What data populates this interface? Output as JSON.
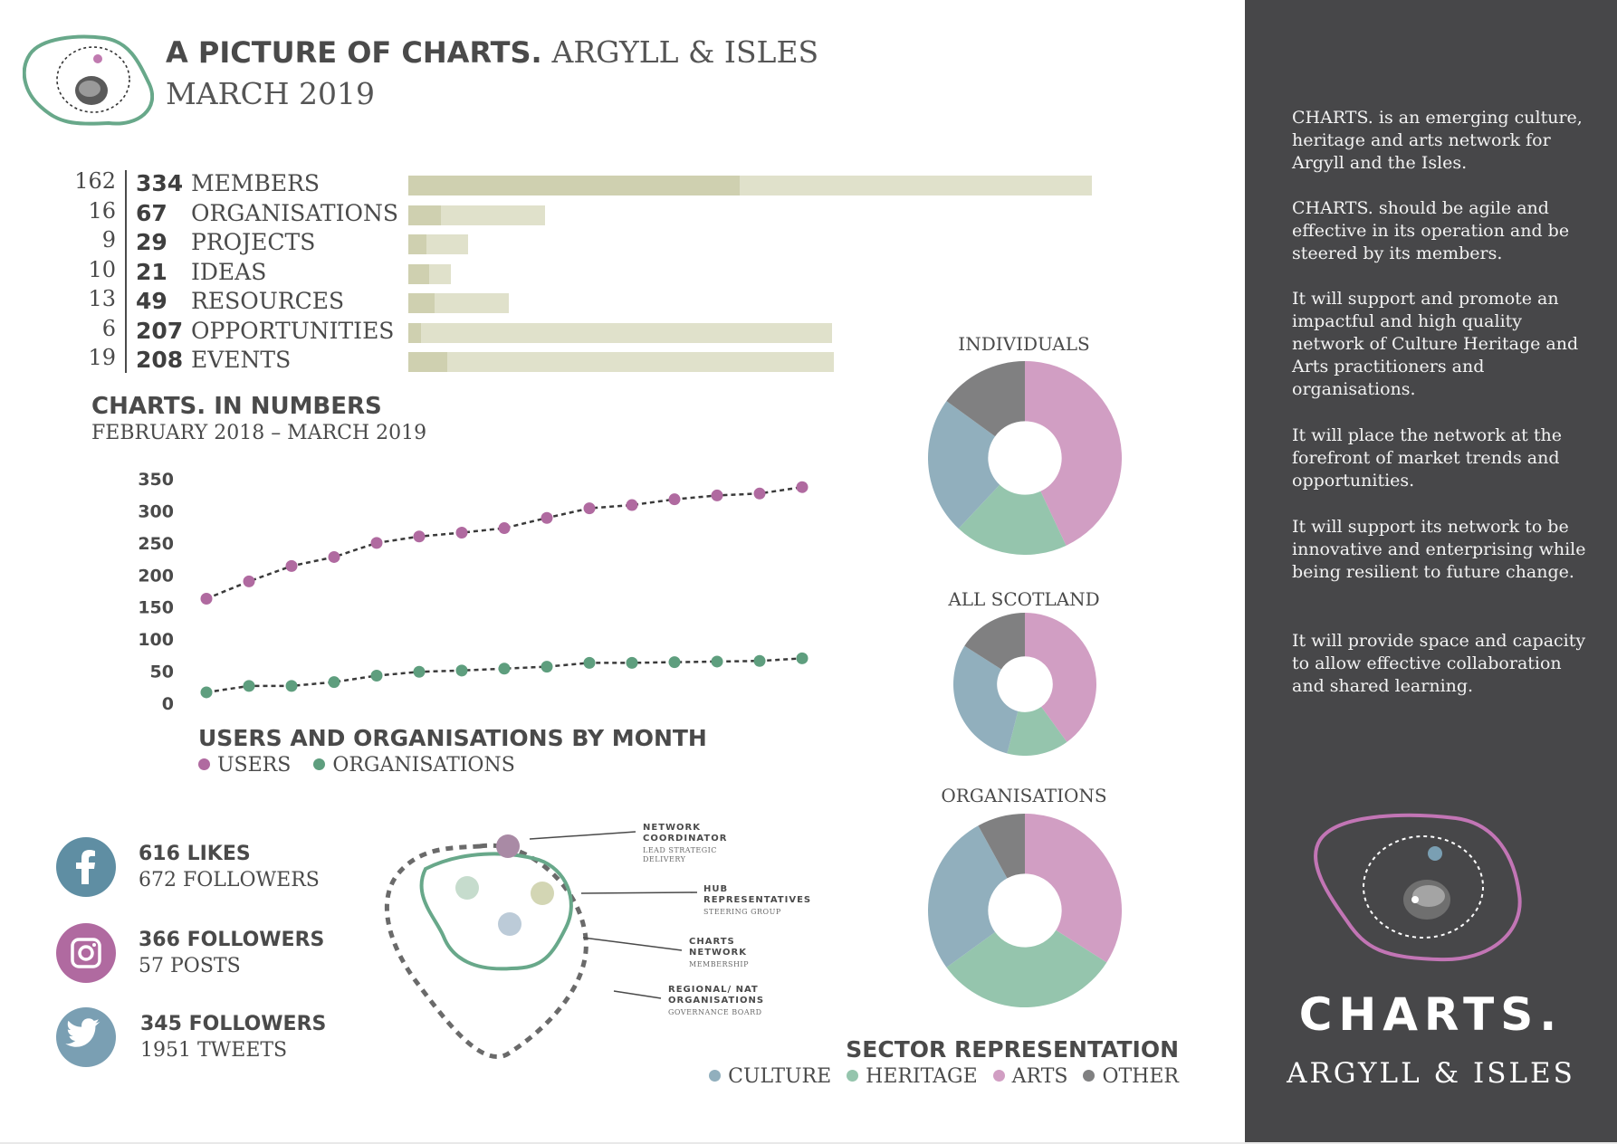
{
  "header": {
    "title_bold": "A PICTURE OF CHARTS.",
    "title_light": "ARGYLL & ISLES",
    "subtitle": "MARCH 2019"
  },
  "stats": [
    {
      "new": 162,
      "total": 334,
      "label": "MEMBERS"
    },
    {
      "new": 16,
      "total": 67,
      "label": "ORGANISATIONS"
    },
    {
      "new": 9,
      "total": 29,
      "label": "PROJECTS"
    },
    {
      "new": 10,
      "total": 21,
      "label": "IDEAS"
    },
    {
      "new": 13,
      "total": 49,
      "label": "RESOURCES"
    },
    {
      "new": 6,
      "total": 207,
      "label": "OPPORTUNITIES"
    },
    {
      "new": 19,
      "total": 208,
      "label": "EVENTS"
    }
  ],
  "numbers": {
    "title": "CHARTS. IN NUMBERS",
    "subtitle": "FEBRUARY 2018 – MARCH 2019"
  },
  "line_chart": {
    "title": "USERS AND ORGANISATIONS BY MONTH",
    "legend": [
      "USERS",
      "ORGANISATIONS"
    ]
  },
  "social": {
    "facebook": {
      "main": "616 LIKES",
      "sub": "672 FOLLOWERS",
      "icon": "facebook-icon"
    },
    "instagram": {
      "main": "366 FOLLOWERS",
      "sub": "57 POSTS",
      "icon": "instagram-icon"
    },
    "twitter": {
      "main": "345 FOLLOWERS",
      "sub": "1951 TWEETS",
      "icon": "twitter-icon"
    }
  },
  "diagram": {
    "labels": [
      {
        "title": [
          "NETWORK",
          "COORDINATOR"
        ],
        "sub": [
          "LEAD STRATEGIC",
          "DELIVERY"
        ]
      },
      {
        "title": [
          "HUB",
          "REPRESENTATIVES"
        ],
        "sub": [
          "STEERING GROUP"
        ]
      },
      {
        "title": [
          "CHARTS",
          "NETWORK"
        ],
        "sub": [
          "MEMBERSHIP"
        ]
      },
      {
        "title": [
          "REGIONAL/ NAT",
          "ORGANISATIONS"
        ],
        "sub": [
          "GOVERNANCE BOARD"
        ]
      }
    ]
  },
  "donuts": {
    "individuals_title": "INDIVIDUALS",
    "scotland_title": "ALL SCOTLAND",
    "organisations_title": "ORGANISATIONS"
  },
  "sector": {
    "title": "SECTOR REPRESENTATION",
    "legend": [
      "CULTURE",
      "HERITAGE",
      "ARTS",
      "OTHER"
    ]
  },
  "panel": {
    "paragraphs": [
      "CHARTS. is an emerging culture, heritage and arts network for Argyll and the Isles.",
      "CHARTS. should be agile and effective in its operation and be steered by its members.",
      "It will support and promote an impactful and high quality network of Culture Heritage and Arts practitioners and organisations.",
      "It will place the network at the forefront of market trends and opportunities.",
      "It will support its network to be innovative and enterprising while being resilient to future change.",
      "It will provide space and capacity to allow effective collaboration and shared learning."
    ],
    "brand_name": "CHARTS.",
    "brand_sub": "ARGYLL & ISLES"
  },
  "colors": {
    "users": "#b06aa0",
    "organisations": "#5e9e7e",
    "culture": "#91afbd",
    "heritage": "#95c5ad",
    "arts": "#d19ec3",
    "other": "#808081",
    "bar_total": "#e0e1cb",
    "bar_new": "#cfd0b0",
    "panel": "#474749"
  },
  "chart_data": [
    {
      "type": "bar",
      "categories": [
        "MEMBERS",
        "ORGANISATIONS",
        "PROJECTS",
        "IDEAS",
        "RESOURCES",
        "OPPORTUNITIES",
        "EVENTS"
      ],
      "series": [
        {
          "values": [
            334,
            67,
            29,
            21,
            49,
            207,
            208
          ]
        },
        {
          "values": [
            162,
            16,
            9,
            10,
            13,
            6,
            19
          ]
        }
      ]
    },
    {
      "type": "line",
      "title": "USERS AND ORGANISATIONS BY MONTH",
      "y_ticks": [
        350,
        300,
        250,
        200,
        150,
        100,
        50,
        0
      ],
      "ylim": [
        0,
        350
      ],
      "series": [
        {
          "name": "USERS",
          "values": [
            163,
            190,
            214,
            228,
            250,
            260,
            266,
            273,
            289,
            304,
            309,
            318,
            324,
            327,
            337
          ]
        },
        {
          "name": "ORGANISATIONS",
          "values": [
            17,
            27,
            27,
            33,
            43,
            49,
            51,
            54,
            57,
            63,
            63,
            64,
            65,
            66,
            70
          ]
        }
      ]
    },
    {
      "type": "pie",
      "title": "INDIVIDUALS",
      "categories": [
        "ARTS",
        "HERITAGE",
        "CULTURE",
        "OTHER"
      ],
      "values": [
        43,
        19,
        23,
        15
      ]
    },
    {
      "type": "pie",
      "title": "ALL SCOTLAND",
      "categories": [
        "ARTS",
        "HERITAGE",
        "CULTURE",
        "OTHER"
      ],
      "values": [
        40,
        14,
        30,
        16
      ]
    },
    {
      "type": "pie",
      "title": "ORGANISATIONS",
      "categories": [
        "ARTS",
        "HERITAGE",
        "CULTURE",
        "OTHER"
      ],
      "values": [
        34,
        31,
        27,
        8
      ]
    }
  ]
}
